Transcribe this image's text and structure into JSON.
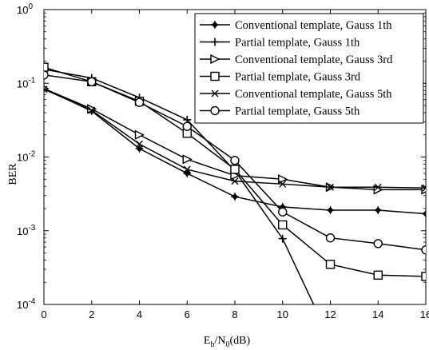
{
  "chart_data": {
    "type": "line",
    "title": "",
    "xlabel": {
      "base": "E",
      "sub1": "b",
      "mid": "/N",
      "sub2": "0",
      "tail": "(dB)"
    },
    "ylabel": "BER",
    "xlim": [
      0,
      16
    ],
    "ylim": [
      0.0001,
      1
    ],
    "yscale": "log",
    "grid": false,
    "legend_position": "top-right",
    "x_ticks": [
      "0",
      "2",
      "4",
      "6",
      "8",
      "10",
      "12",
      "14",
      "16"
    ],
    "y_ticks": [
      {
        "value": 1,
        "base": "10",
        "exp": "0"
      },
      {
        "value": 0.1,
        "base": "10",
        "exp": "-1"
      },
      {
        "value": 0.01,
        "base": "10",
        "exp": "-2"
      },
      {
        "value": 0.001,
        "base": "10",
        "exp": "-3"
      },
      {
        "value": 0.0001,
        "base": "10",
        "exp": "-4"
      }
    ],
    "series": [
      {
        "name": "Conventional template, Gauss 1th",
        "marker": "diamond-plus",
        "color": "#000000",
        "x": [
          0,
          2,
          4,
          6,
          8,
          10,
          12,
          14,
          16
        ],
        "y": [
          0.085,
          0.042,
          0.013,
          0.006,
          0.0029,
          0.0021,
          0.0019,
          0.0019,
          0.0017
        ]
      },
      {
        "name": "Partial template, Gauss 1th",
        "marker": "plus",
        "color": "#000000",
        "x": [
          0,
          2,
          4,
          6,
          8,
          10,
          11.3
        ],
        "y": [
          0.155,
          0.118,
          0.064,
          0.032,
          0.0065,
          0.00078,
          0.0001
        ]
      },
      {
        "name": "Conventional template, Gauss 3rd",
        "marker": "triangle-right",
        "color": "#000000",
        "x": [
          0,
          2,
          4,
          6,
          8,
          10,
          12,
          14,
          16
        ],
        "y": [
          0.085,
          0.045,
          0.02,
          0.0093,
          0.0056,
          0.005,
          0.0039,
          0.0036,
          0.0036
        ]
      },
      {
        "name": "Partial template, Gauss 3rd",
        "marker": "square",
        "color": "#000000",
        "x": [
          0,
          2,
          4,
          6,
          8,
          10,
          12,
          14,
          16
        ],
        "y": [
          0.165,
          0.105,
          0.057,
          0.021,
          0.0068,
          0.0012,
          0.00035,
          0.00025,
          0.00024
        ]
      },
      {
        "name": "Conventional template, Gauss 5th",
        "marker": "x",
        "color": "#000000",
        "x": [
          0,
          2,
          4,
          6,
          8,
          10,
          12,
          14,
          16
        ],
        "y": [
          0.083,
          0.043,
          0.015,
          0.0068,
          0.0047,
          0.0043,
          0.0039,
          0.0039,
          0.0038
        ]
      },
      {
        "name": "Partial template, Gauss 5th",
        "marker": "circle",
        "color": "#000000",
        "x": [
          0,
          2,
          4,
          6,
          8,
          10,
          12,
          14,
          16
        ],
        "y": [
          0.13,
          0.105,
          0.055,
          0.026,
          0.009,
          0.0018,
          0.0008,
          0.00067,
          0.00055
        ]
      }
    ]
  }
}
